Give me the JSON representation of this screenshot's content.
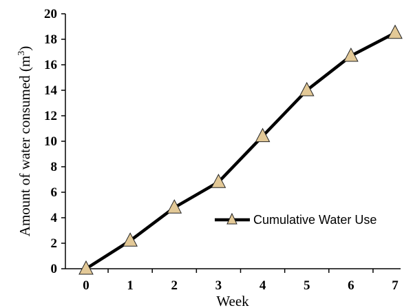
{
  "chart_data": {
    "type": "line",
    "title": "",
    "xlabel": "Week",
    "ylabel_main": "Amount of water consumed (m",
    "ylabel_sup": "3",
    "ylabel_close": ")",
    "x": [
      0,
      1,
      2,
      3,
      4,
      5,
      6,
      7
    ],
    "x_ticks": [
      "0",
      "1",
      "2",
      "3",
      "4",
      "5",
      "6",
      "7"
    ],
    "y_ticks": [
      "0",
      "2",
      "4",
      "6",
      "8",
      "10",
      "12",
      "14",
      "16",
      "18",
      "20"
    ],
    "ylim": [
      0,
      20
    ],
    "grid": false,
    "legend_position": "right",
    "series": [
      {
        "name": "Cumulative Water Use",
        "values": [
          0,
          2.2,
          4.8,
          6.8,
          10.4,
          14.0,
          16.7,
          18.5
        ],
        "line_color": "#000000",
        "marker": "triangle",
        "marker_fill": "#e3c997",
        "marker_edge": "#222222"
      }
    ]
  }
}
